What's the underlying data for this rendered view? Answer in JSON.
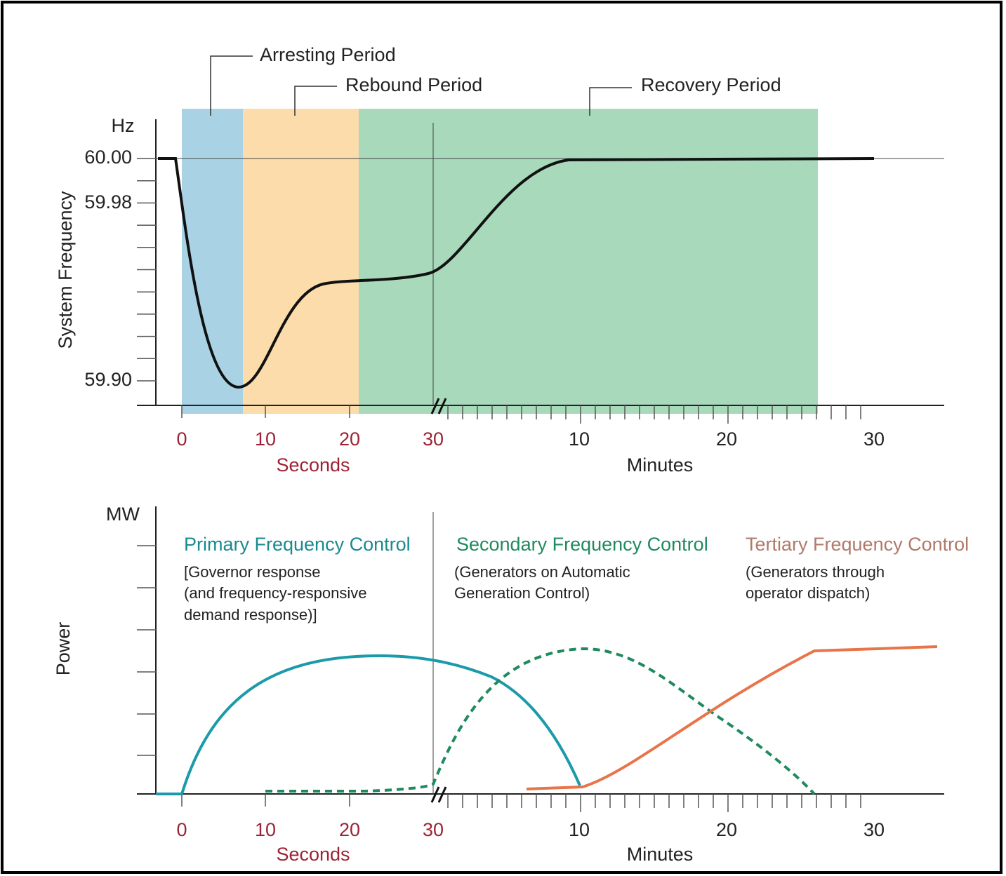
{
  "top": {
    "unit_label": "Hz",
    "y_axis_label": "System Frequency",
    "y_ticks": [
      "60.00",
      "59.98",
      "59.90"
    ],
    "periods": [
      "Arresting Period",
      "Rebound Period",
      "Recovery Period"
    ],
    "seconds_ticks": [
      "0",
      "10",
      "20",
      "30"
    ],
    "seconds_label": "Seconds",
    "minutes_ticks": [
      "10",
      "20",
      "30"
    ],
    "minutes_label": "Minutes"
  },
  "bottom": {
    "unit_label": "MW",
    "y_axis_label": "Power",
    "controls": [
      {
        "title": "Primary Frequency Control",
        "lines": [
          "[Governor response",
          "(and frequency-responsive",
          "demand response)]"
        ]
      },
      {
        "title": "Secondary Frequency Control",
        "lines": [
          "(Generators on Automatic",
          "Generation Control)"
        ]
      },
      {
        "title": "Tertiary Frequency Control",
        "lines": [
          "(Generators through",
          "operator dispatch)"
        ]
      }
    ],
    "seconds_ticks": [
      "0",
      "10",
      "20",
      "30"
    ],
    "seconds_label": "Seconds",
    "minutes_ticks": [
      "10",
      "20",
      "30"
    ],
    "minutes_label": "Minutes"
  }
}
